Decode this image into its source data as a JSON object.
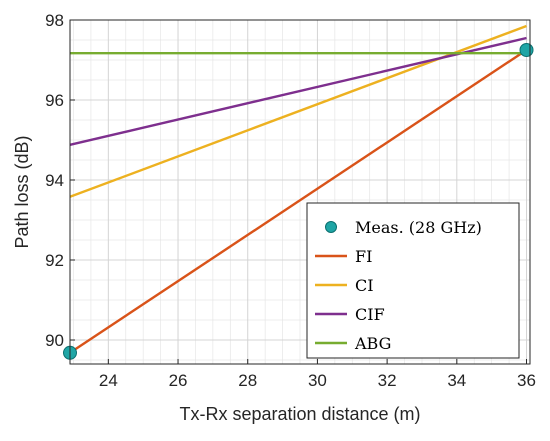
{
  "chart_data": {
    "type": "line",
    "xlabel": "Tx-Rx separation distance (m)",
    "ylabel": "Path loss (dB)",
    "xlim": [
      22.9,
      36.1
    ],
    "ylim": [
      89.4,
      98.0
    ],
    "xticks": [
      24,
      26,
      28,
      30,
      32,
      34,
      36
    ],
    "yticks": [
      90,
      92,
      94,
      96,
      98
    ],
    "grid": true,
    "minor_grid": true,
    "legend_position": "bottom-right",
    "series": [
      {
        "name": "Meas. (28 GHz)",
        "kind": "scatter",
        "color": "#1fa5a5",
        "x": [
          22.9,
          36.0
        ],
        "y": [
          89.68,
          97.25
        ]
      },
      {
        "name": "FI",
        "kind": "line",
        "color": "#d95319",
        "x": [
          22.9,
          36.0
        ],
        "y": [
          89.68,
          97.25
        ]
      },
      {
        "name": "CI",
        "kind": "line",
        "color": "#edb120",
        "x": [
          22.9,
          36.0
        ],
        "y": [
          93.58,
          97.85
        ]
      },
      {
        "name": "CIF",
        "kind": "line",
        "color": "#7e2f8e",
        "x": [
          22.9,
          36.0
        ],
        "y": [
          94.88,
          97.55
        ]
      },
      {
        "name": "ABG",
        "kind": "line",
        "color": "#77ac30",
        "x": [
          22.9,
          36.0
        ],
        "y": [
          97.17,
          97.17
        ]
      }
    ]
  }
}
